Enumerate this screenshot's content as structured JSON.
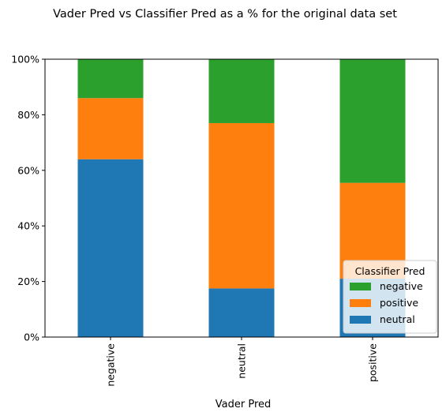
{
  "chart_data": {
    "type": "bar",
    "stacked": true,
    "title": "Vader Pred vs Classifier Pred as a % for the original data set",
    "xlabel": "Vader Pred",
    "ylabel": "",
    "categories": [
      "negative",
      "neutral",
      "positive"
    ],
    "ylim": [
      0,
      100
    ],
    "yticks": [
      0,
      20,
      40,
      60,
      80,
      100
    ],
    "ytick_labels": [
      "0%",
      "20%",
      "40%",
      "60%",
      "80%",
      "100%"
    ],
    "series": [
      {
        "name": "neutral",
        "values": [
          64,
          17.5,
          21
        ],
        "color": "#1f77b4"
      },
      {
        "name": "positive",
        "values": [
          22,
          59.5,
          34.5
        ],
        "color": "#ff7f0e"
      },
      {
        "name": "negative",
        "values": [
          14,
          23,
          44.5
        ],
        "color": "#2ca02c"
      }
    ],
    "legend": {
      "title": "Classifier Pred",
      "placement": "lower-right",
      "entries": [
        "negative",
        "positive",
        "neutral"
      ]
    },
    "grid": false
  }
}
